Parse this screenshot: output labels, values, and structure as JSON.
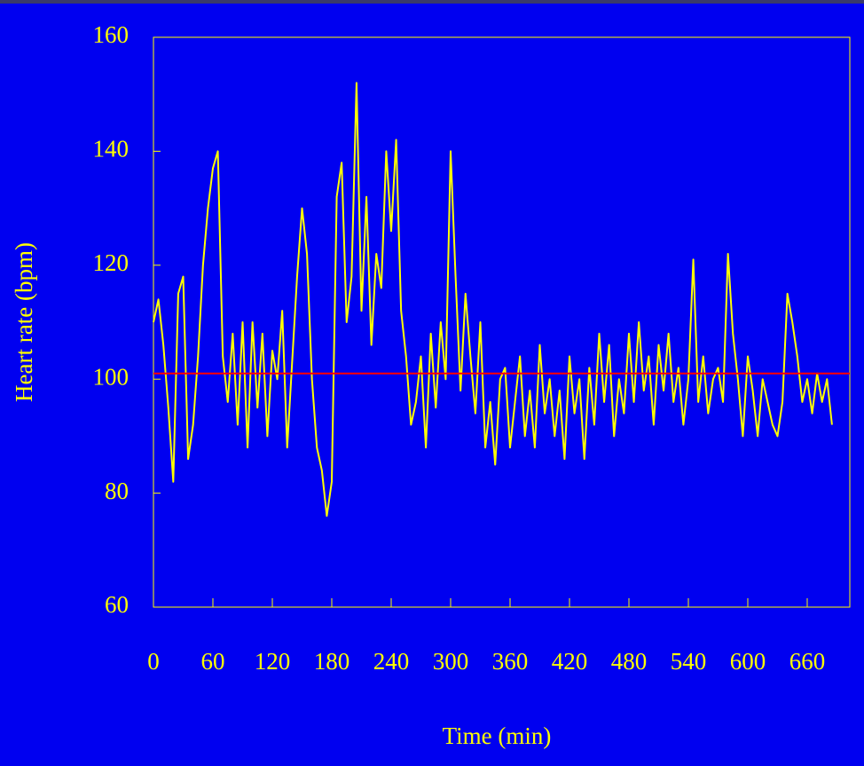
{
  "chart_data": {
    "type": "line",
    "x_label": "Time (min)",
    "y_label": "Heart rate (bpm)",
    "xlim": [
      0,
      703
    ],
    "ylim": [
      60,
      160
    ],
    "xticks": [
      0,
      60,
      120,
      180,
      240,
      300,
      360,
      420,
      480,
      540,
      600,
      660
    ],
    "yticks": [
      60,
      80,
      100,
      120,
      140,
      160
    ],
    "grid": false,
    "axis_color": "#ffff00",
    "reference_line": {
      "value": 101,
      "color": "#ff0000"
    },
    "x": [
      0,
      5,
      10,
      15,
      20,
      25,
      30,
      35,
      40,
      45,
      50,
      55,
      60,
      65,
      70,
      75,
      80,
      85,
      90,
      95,
      100,
      105,
      110,
      115,
      120,
      125,
      130,
      135,
      140,
      145,
      150,
      155,
      160,
      165,
      170,
      175,
      180,
      185,
      190,
      195,
      200,
      205,
      210,
      215,
      220,
      225,
      230,
      235,
      240,
      245,
      250,
      255,
      260,
      265,
      270,
      275,
      280,
      285,
      290,
      295,
      300,
      305,
      310,
      315,
      320,
      325,
      330,
      335,
      340,
      345,
      350,
      355,
      360,
      365,
      370,
      375,
      380,
      385,
      390,
      395,
      400,
      405,
      410,
      415,
      420,
      425,
      430,
      435,
      440,
      445,
      450,
      455,
      460,
      465,
      470,
      475,
      480,
      485,
      490,
      495,
      500,
      505,
      510,
      515,
      520,
      525,
      530,
      535,
      540,
      545,
      550,
      555,
      560,
      565,
      570,
      575,
      580,
      585,
      590,
      595,
      600,
      605,
      610,
      615,
      620,
      625,
      630,
      635,
      640,
      645,
      650,
      655,
      660,
      665,
      670,
      675,
      680,
      685
    ],
    "series": [
      {
        "color": "#ffff00",
        "values": [
          110,
          114,
          106,
          95,
          82,
          115,
          118,
          86,
          92,
          104,
          120,
          130,
          137,
          140,
          104,
          96,
          108,
          92,
          110,
          88,
          110,
          95,
          108,
          90,
          105,
          100,
          112,
          88,
          103,
          118,
          130,
          122,
          100,
          88,
          84,
          76,
          82,
          132,
          138,
          110,
          118,
          152,
          112,
          132,
          106,
          122,
          116,
          140,
          126,
          142,
          112,
          104,
          92,
          96,
          104,
          88,
          108,
          95,
          110,
          100,
          140,
          118,
          98,
          115,
          104,
          94,
          110,
          88,
          96,
          85,
          100,
          102,
          88,
          96,
          104,
          90,
          98,
          88,
          106,
          94,
          100,
          90,
          98,
          86,
          104,
          94,
          100,
          86,
          102,
          92,
          108,
          96,
          106,
          90,
          100,
          94,
          108,
          96,
          110,
          98,
          104,
          92,
          106,
          98,
          108,
          96,
          102,
          92,
          100,
          121,
          96,
          104,
          94,
          100,
          102,
          96,
          122,
          108,
          100,
          90,
          104,
          98,
          90,
          100,
          96,
          92,
          90,
          96,
          115,
          110,
          104,
          96,
          100,
          94,
          101,
          96,
          100,
          92
        ]
      }
    ]
  }
}
